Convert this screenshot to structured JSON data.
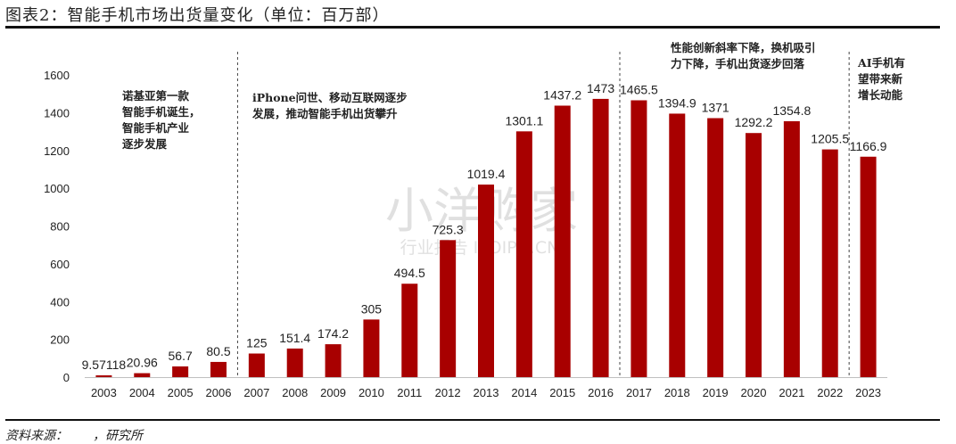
{
  "title": "图表2：智能手机市场出货量变化（单位：百万部）",
  "source": "资料来源：　　，研究所",
  "watermark": {
    "main": "小洋购家",
    "sub": "行业报告 IPOIPO.CN"
  },
  "colors": {
    "bar": "#a80000",
    "axis": "#bfbfbf",
    "text": "#222222"
  },
  "chart_data": {
    "type": "bar",
    "title": "",
    "xlabel": "",
    "ylabel": "",
    "ylim": [
      0,
      1600
    ],
    "yticks": [
      0,
      200,
      400,
      600,
      800,
      1000,
      1200,
      1400,
      1600
    ],
    "categories": [
      "2003",
      "2004",
      "2005",
      "2006",
      "2007",
      "2008",
      "2009",
      "2010",
      "2011",
      "2012",
      "2013",
      "2014",
      "2015",
      "2016",
      "2017",
      "2018",
      "2019",
      "2020",
      "2021",
      "2022",
      "2023"
    ],
    "values": [
      9.57118,
      20.96,
      56.7,
      80.5,
      125,
      151.4,
      174.2,
      305,
      494.5,
      725.3,
      1019.4,
      1301.1,
      1437.2,
      1473,
      1465.5,
      1394.9,
      1371,
      1292.2,
      1354.8,
      1205.5,
      1166.9
    ],
    "labels": [
      "9.57118",
      "20.96",
      "56.7",
      "80.5",
      "125",
      "151.4",
      "174.2",
      "305",
      "494.5",
      "725.3",
      "1019.4",
      "1301.1",
      "1437.2",
      "1473",
      "1465.5",
      "1394.9",
      "1371",
      "1292.2",
      "1354.8",
      "1205.5",
      "1166.9"
    ],
    "grid": false,
    "legend": "none",
    "phases": [
      {
        "after": "2006",
        "text": [
          "诺基亚第一款",
          "智能手机诞生，",
          "智能手机产业",
          "逐步发展"
        ]
      },
      {
        "after": "2016",
        "text": [
          "iPhone问世、移动互联网逐步",
          "发展，推动智能手机出货攀升"
        ]
      },
      {
        "after": "2022",
        "text": [
          "性能创新斜率下降，换机吸引",
          "力下降，手机出货逐步回落"
        ]
      },
      {
        "after": "",
        "text": [
          "AI手机有",
          "望带来新",
          "增长动能"
        ]
      }
    ]
  }
}
